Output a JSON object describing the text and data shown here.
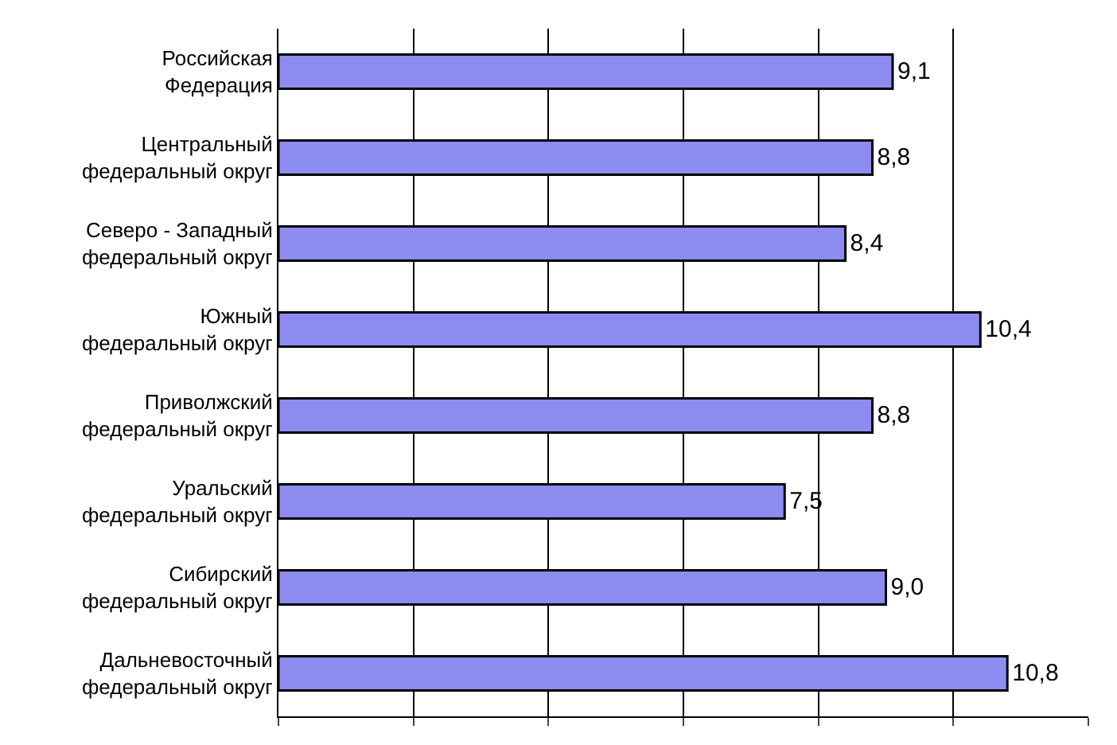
{
  "chart_data": {
    "type": "bar",
    "orientation": "horizontal",
    "categories": [
      "Российская\nФедерация",
      "Центральный\nфедеральный округ",
      "Северо - Западный\nфедеральный округ",
      "Южный\nфедеральный округ",
      "Приволжский\nфедеральный округ",
      "Уральский\nфедеральный округ",
      "Сибирский\nфедеральный округ",
      "Дальневосточный\nфедеральный округ"
    ],
    "series": [
      {
        "color": "#8c8cf0",
        "values": [
          9.1,
          8.8,
          8.4,
          10.4,
          8.8,
          7.5,
          9.0,
          10.8
        ],
        "value_labels": [
          "9,1",
          "8,8",
          "8,4",
          "10,4",
          "8,8",
          "7,5",
          "9,0",
          "10,8"
        ]
      }
    ],
    "xlim": [
      0,
      12
    ],
    "xticks": [
      {
        "value": 0,
        "label": null
      },
      {
        "value": 2,
        "label": null
      },
      {
        "value": 4,
        "label": null
      },
      {
        "value": 6,
        "label": null
      },
      {
        "value": 8,
        "label": null
      },
      {
        "value": 10,
        "label": null
      },
      {
        "value": 12,
        "label": null
      }
    ],
    "grid": "x",
    "tick_labels": "y"
  }
}
